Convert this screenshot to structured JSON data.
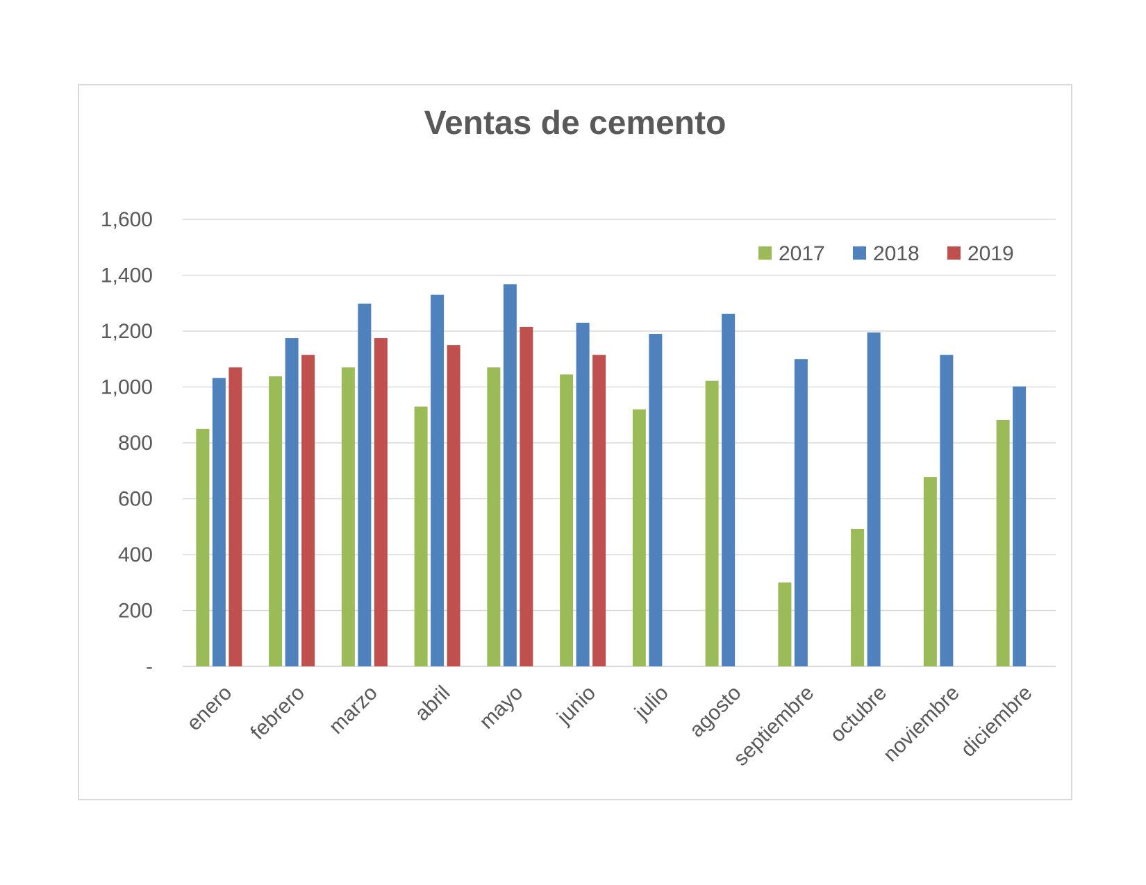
{
  "chart_data": {
    "type": "bar",
    "title": "Ventas de cemento",
    "xlabel": "",
    "ylabel": "",
    "categories": [
      "enero",
      "febrero",
      "marzo",
      "abril",
      "mayo",
      "junio",
      "julio",
      "agosto",
      "septiembre",
      "octubre",
      "noviembre",
      "diciembre"
    ],
    "series": [
      {
        "name": "2017",
        "color": "#9BBB59",
        "values": [
          850,
          1038,
          1070,
          930,
          1070,
          1045,
          920,
          1022,
          300,
          492,
          678,
          882
        ]
      },
      {
        "name": "2018",
        "color": "#4F81BD",
        "values": [
          1032,
          1175,
          1298,
          1330,
          1368,
          1230,
          1190,
          1262,
          1100,
          1195,
          1115,
          1002
        ]
      },
      {
        "name": "2019",
        "color": "#C0504D",
        "values": [
          1070,
          1115,
          1175,
          1150,
          1215,
          1115,
          null,
          null,
          null,
          null,
          null,
          null
        ]
      }
    ],
    "ylim": [
      0,
      1600
    ],
    "yticks": [
      0,
      200,
      400,
      600,
      800,
      1000,
      1200,
      1400,
      1600
    ],
    "ytick_labels": [
      "-",
      "200",
      "400",
      "600",
      "800",
      "1,000",
      "1,200",
      "1,400",
      "1,600"
    ],
    "grid": true,
    "legend_position": "top-right"
  }
}
